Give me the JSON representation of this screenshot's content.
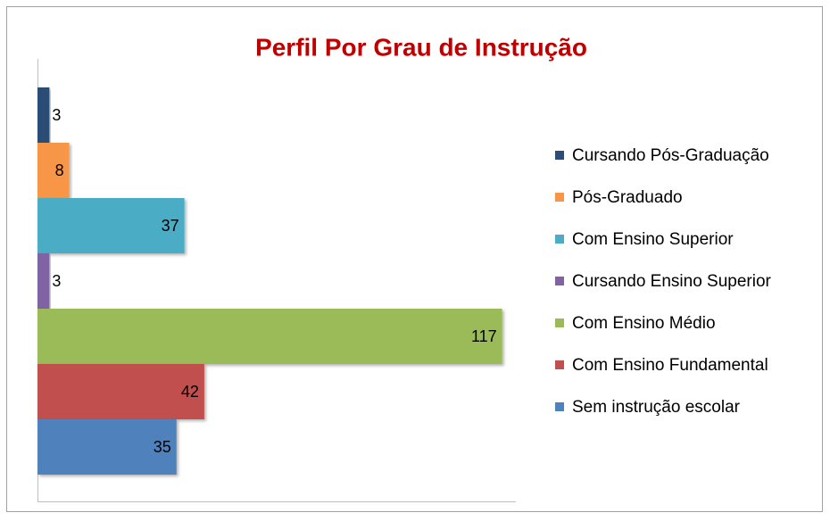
{
  "chart_data": {
    "type": "bar",
    "orientation": "horizontal",
    "title": "Perfil Por Grau de Instrução",
    "series": [
      {
        "name": "Cursando Pós-Graduação",
        "color": "#2c4d75",
        "values": [
          3
        ]
      },
      {
        "name": "Pós-Graduado",
        "color": "#f79646",
        "values": [
          8
        ]
      },
      {
        "name": "Com Ensino Superior",
        "color": "#4bacc6",
        "values": [
          37
        ]
      },
      {
        "name": "Cursando Ensino Superior",
        "color": "#8064a2",
        "values": [
          3
        ]
      },
      {
        "name": "Com Ensino Médio",
        "color": "#9bbb59",
        "values": [
          117
        ]
      },
      {
        "name": "Com Ensino Fundamental",
        "color": "#c0504d",
        "values": [
          42
        ]
      },
      {
        "name": "Sem instrução escolar",
        "color": "#4f81bd",
        "values": [
          35
        ]
      }
    ],
    "xlim": [
      0,
      120
    ],
    "legend": "right"
  }
}
